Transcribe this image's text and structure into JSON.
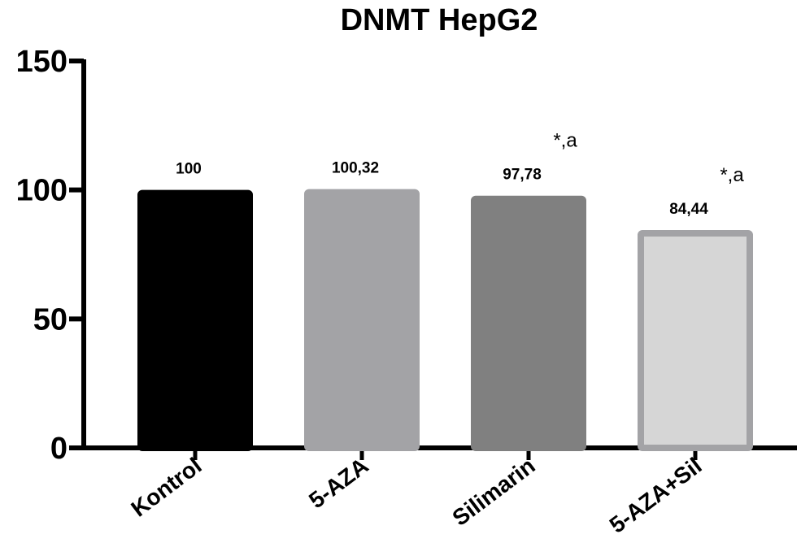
{
  "chart_data": {
    "type": "bar",
    "title": "DNMT HepG2",
    "xlabel": "",
    "ylabel": "",
    "ylim": [
      0,
      150
    ],
    "yticks": [
      "0",
      "50",
      "100",
      "150"
    ],
    "categories": [
      "Kontrol",
      "5-AZA",
      "Silimarin",
      "5-AZA+Sil"
    ],
    "values": [
      100,
      100.32,
      97.78,
      84.44
    ],
    "data_labels": [
      "100",
      "100,32",
      "97,78",
      "84,44"
    ],
    "annotations": [
      "",
      "",
      "*,a",
      "*,a"
    ],
    "colors": [
      "#000000",
      "#a3a3a6",
      "#808080",
      "#d6d6d6"
    ],
    "outline_colors": [
      "#000000",
      "#a3a3a6",
      "#808080",
      "#a3a3a6"
    ],
    "grid": false,
    "legend": "none"
  }
}
